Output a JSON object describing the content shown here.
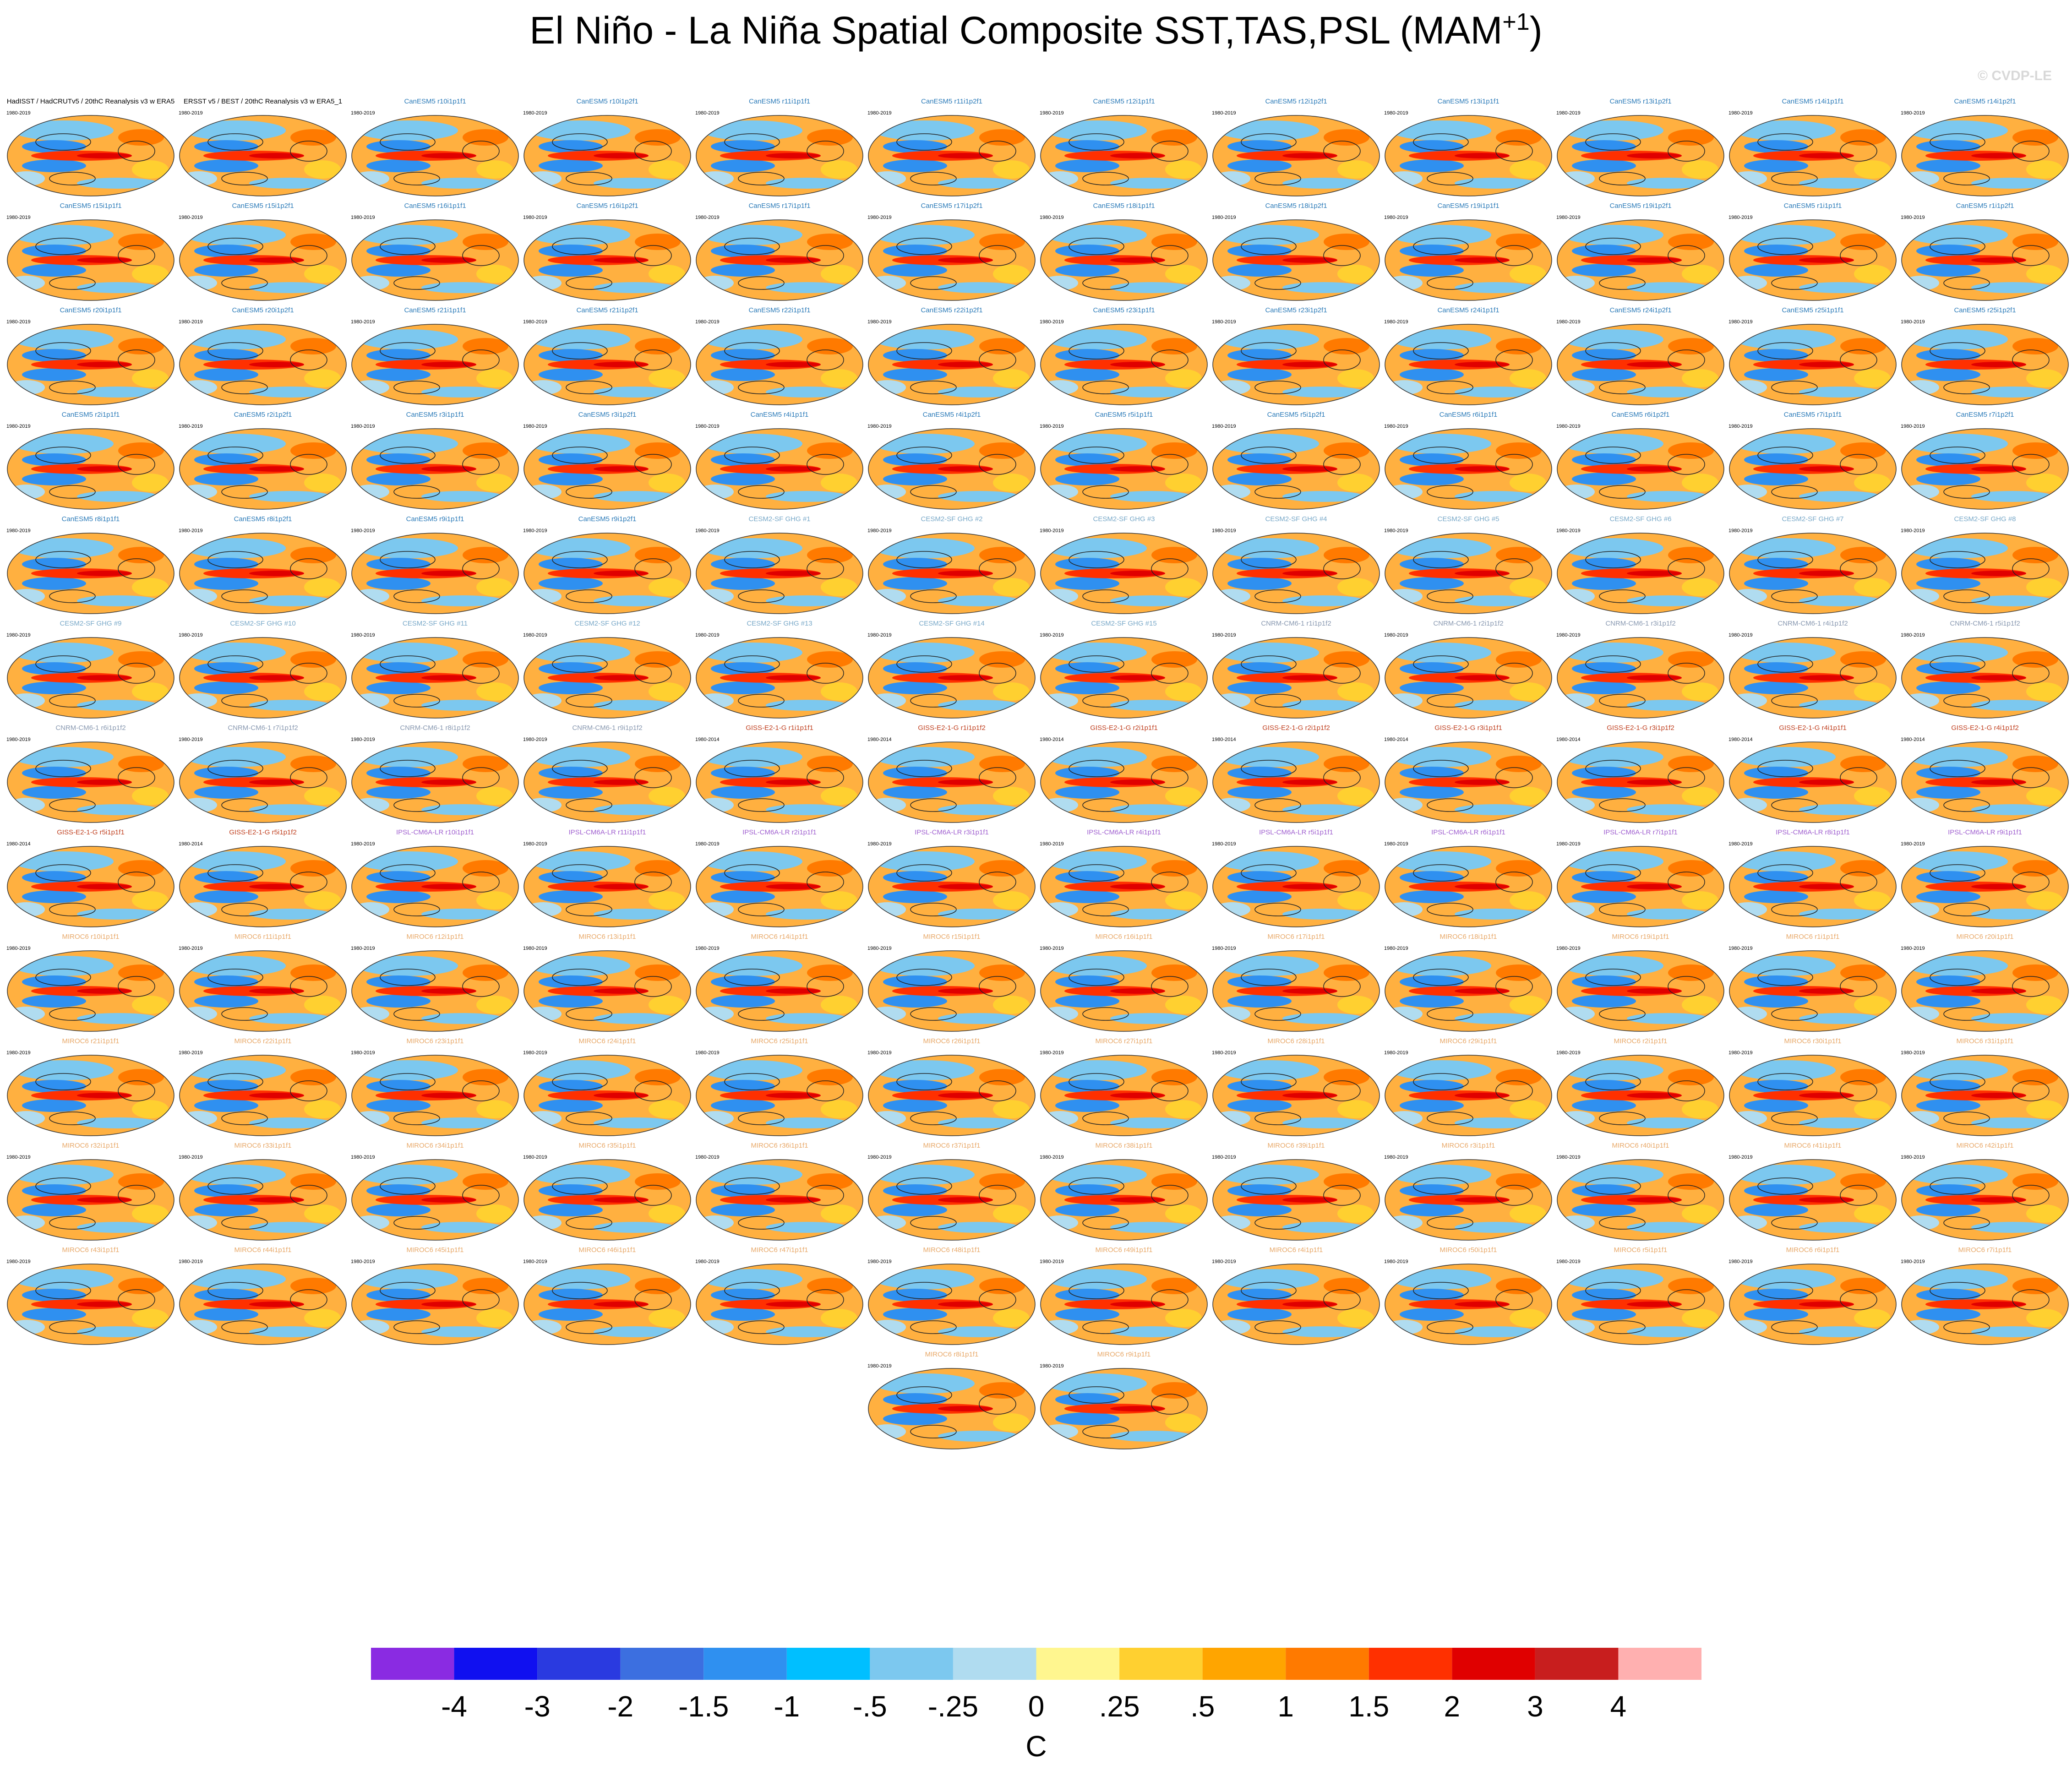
{
  "title": "El Niño - La Niña Spatial Composite SST,TAS,PSL (MAM",
  "title_sup": "+1",
  "title_end": ")",
  "watermark": "© CVDP-LE",
  "panels": [
    {
      "title": "HadISST / HadCRUTv5 / 20thC Reanalysis v3 w ERA5",
      "period": "1980-2019",
      "color": "#000000"
    },
    {
      "title": "ERSST v5 / BEST / 20thC Reanalysis v3 w ERA5_1",
      "period": "1980-2019",
      "color": "#000000"
    },
    {
      "title": "CanESM5 r10i1p1f1",
      "period": "1980-2019",
      "color": "#2a7ab8"
    },
    {
      "title": "CanESM5 r10i1p2f1",
      "period": "1980-2019",
      "color": "#2a7ab8"
    },
    {
      "title": "CanESM5 r11i1p1f1",
      "period": "1980-2019",
      "color": "#2a7ab8"
    },
    {
      "title": "CanESM5 r11i1p2f1",
      "period": "1980-2019",
      "color": "#2a7ab8"
    },
    {
      "title": "CanESM5 r12i1p1f1",
      "period": "1980-2019",
      "color": "#2a7ab8"
    },
    {
      "title": "CanESM5 r12i1p2f1",
      "period": "1980-2019",
      "color": "#2a7ab8"
    },
    {
      "title": "CanESM5 r13i1p1f1",
      "period": "1980-2019",
      "color": "#2a7ab8"
    },
    {
      "title": "CanESM5 r13i1p2f1",
      "period": "1980-2019",
      "color": "#2a7ab8"
    },
    {
      "title": "CanESM5 r14i1p1f1",
      "period": "1980-2019",
      "color": "#2a7ab8"
    },
    {
      "title": "CanESM5 r14i1p2f1",
      "period": "1980-2019",
      "color": "#2a7ab8"
    },
    {
      "title": "CanESM5 r15i1p1f1",
      "period": "1980-2019",
      "color": "#2a7ab8"
    },
    {
      "title": "CanESM5 r15i1p2f1",
      "period": "1980-2019",
      "color": "#2a7ab8"
    },
    {
      "title": "CanESM5 r16i1p1f1",
      "period": "1980-2019",
      "color": "#2a7ab8"
    },
    {
      "title": "CanESM5 r16i1p2f1",
      "period": "1980-2019",
      "color": "#2a7ab8"
    },
    {
      "title": "CanESM5 r17i1p1f1",
      "period": "1980-2019",
      "color": "#2a7ab8"
    },
    {
      "title": "CanESM5 r17i1p2f1",
      "period": "1980-2019",
      "color": "#2a7ab8"
    },
    {
      "title": "CanESM5 r18i1p1f1",
      "period": "1980-2019",
      "color": "#2a7ab8"
    },
    {
      "title": "CanESM5 r18i1p2f1",
      "period": "1980-2019",
      "color": "#2a7ab8"
    },
    {
      "title": "CanESM5 r19i1p1f1",
      "period": "1980-2019",
      "color": "#2a7ab8"
    },
    {
      "title": "CanESM5 r19i1p2f1",
      "period": "1980-2019",
      "color": "#2a7ab8"
    },
    {
      "title": "CanESM5 r1i1p1f1",
      "period": "1980-2019",
      "color": "#2a7ab8"
    },
    {
      "title": "CanESM5 r1i1p2f1",
      "period": "1980-2019",
      "color": "#2a7ab8"
    },
    {
      "title": "CanESM5 r20i1p1f1",
      "period": "1980-2019",
      "color": "#2a7ab8"
    },
    {
      "title": "CanESM5 r20i1p2f1",
      "period": "1980-2019",
      "color": "#2a7ab8"
    },
    {
      "title": "CanESM5 r21i1p1f1",
      "period": "1980-2019",
      "color": "#2a7ab8"
    },
    {
      "title": "CanESM5 r21i1p2f1",
      "period": "1980-2019",
      "color": "#2a7ab8"
    },
    {
      "title": "CanESM5 r22i1p1f1",
      "period": "1980-2019",
      "color": "#2a7ab8"
    },
    {
      "title": "CanESM5 r22i1p2f1",
      "period": "1980-2019",
      "color": "#2a7ab8"
    },
    {
      "title": "CanESM5 r23i1p1f1",
      "period": "1980-2019",
      "color": "#2a7ab8"
    },
    {
      "title": "CanESM5 r23i1p2f1",
      "period": "1980-2019",
      "color": "#2a7ab8"
    },
    {
      "title": "CanESM5 r24i1p1f1",
      "period": "1980-2019",
      "color": "#2a7ab8"
    },
    {
      "title": "CanESM5 r24i1p2f1",
      "period": "1980-2019",
      "color": "#2a7ab8"
    },
    {
      "title": "CanESM5 r25i1p1f1",
      "period": "1980-2019",
      "color": "#2a7ab8"
    },
    {
      "title": "CanESM5 r25i1p2f1",
      "period": "1980-2019",
      "color": "#2a7ab8"
    },
    {
      "title": "CanESM5 r2i1p1f1",
      "period": "1980-2019",
      "color": "#2a7ab8"
    },
    {
      "title": "CanESM5 r2i1p2f1",
      "period": "1980-2019",
      "color": "#2a7ab8"
    },
    {
      "title": "CanESM5 r3i1p1f1",
      "period": "1980-2019",
      "color": "#2a7ab8"
    },
    {
      "title": "CanESM5 r3i1p2f1",
      "period": "1980-2019",
      "color": "#2a7ab8"
    },
    {
      "title": "CanESM5 r4i1p1f1",
      "period": "1980-2019",
      "color": "#2a7ab8"
    },
    {
      "title": "CanESM5 r4i1p2f1",
      "period": "1980-2019",
      "color": "#2a7ab8"
    },
    {
      "title": "CanESM5 r5i1p1f1",
      "period": "1980-2019",
      "color": "#2a7ab8"
    },
    {
      "title": "CanESM5 r5i1p2f1",
      "period": "1980-2019",
      "color": "#2a7ab8"
    },
    {
      "title": "CanESM5 r6i1p1f1",
      "period": "1980-2019",
      "color": "#2a7ab8"
    },
    {
      "title": "CanESM5 r6i1p2f1",
      "period": "1980-2019",
      "color": "#2a7ab8"
    },
    {
      "title": "CanESM5 r7i1p1f1",
      "period": "1980-2019",
      "color": "#2a7ab8"
    },
    {
      "title": "CanESM5 r7i1p2f1",
      "period": "1980-2019",
      "color": "#2a7ab8"
    },
    {
      "title": "CanESM5 r8i1p1f1",
      "period": "1980-2019",
      "color": "#2a7ab8"
    },
    {
      "title": "CanESM5 r8i1p2f1",
      "period": "1980-2019",
      "color": "#2a7ab8"
    },
    {
      "title": "CanESM5 r9i1p1f1",
      "period": "1980-2019",
      "color": "#2a7ab8"
    },
    {
      "title": "CanESM5 r9i1p2f1",
      "period": "1980-2019",
      "color": "#2a7ab8"
    },
    {
      "title": "CESM2-SF GHG #1",
      "period": "1980-2019",
      "color": "#78a8c8"
    },
    {
      "title": "CESM2-SF GHG #2",
      "period": "1980-2019",
      "color": "#78a8c8"
    },
    {
      "title": "CESM2-SF GHG #3",
      "period": "1980-2019",
      "color": "#78a8c8"
    },
    {
      "title": "CESM2-SF GHG #4",
      "period": "1980-2019",
      "color": "#78a8c8"
    },
    {
      "title": "CESM2-SF GHG #5",
      "period": "1980-2019",
      "color": "#78a8c8"
    },
    {
      "title": "CESM2-SF GHG #6",
      "period": "1980-2019",
      "color": "#78a8c8"
    },
    {
      "title": "CESM2-SF GHG #7",
      "period": "1980-2019",
      "color": "#78a8c8"
    },
    {
      "title": "CESM2-SF GHG #8",
      "period": "1980-2019",
      "color": "#78a8c8"
    },
    {
      "title": "CESM2-SF GHG #9",
      "period": "1980-2019",
      "color": "#78a8c8"
    },
    {
      "title": "CESM2-SF GHG #10",
      "period": "1980-2019",
      "color": "#78a8c8"
    },
    {
      "title": "CESM2-SF GHG #11",
      "period": "1980-2019",
      "color": "#78a8c8"
    },
    {
      "title": "CESM2-SF GHG #12",
      "period": "1980-2019",
      "color": "#78a8c8"
    },
    {
      "title": "CESM2-SF GHG #13",
      "period": "1980-2019",
      "color": "#78a8c8"
    },
    {
      "title": "CESM2-SF GHG #14",
      "period": "1980-2019",
      "color": "#78a8c8"
    },
    {
      "title": "CESM2-SF GHG #15",
      "period": "1980-2019",
      "color": "#78a8c8"
    },
    {
      "title": "CNRM-CM6-1 r1i1p1f2",
      "period": "1980-2019",
      "color": "#8898b0"
    },
    {
      "title": "CNRM-CM6-1 r2i1p1f2",
      "period": "1980-2019",
      "color": "#8898b0"
    },
    {
      "title": "CNRM-CM6-1 r3i1p1f2",
      "period": "1980-2019",
      "color": "#8898b0"
    },
    {
      "title": "CNRM-CM6-1 r4i1p1f2",
      "period": "1980-2019",
      "color": "#8898b0"
    },
    {
      "title": "CNRM-CM6-1 r5i1p1f2",
      "period": "1980-2019",
      "color": "#8898b0"
    },
    {
      "title": "CNRM-CM6-1 r6i1p1f2",
      "period": "1980-2019",
      "color": "#8898b0"
    },
    {
      "title": "CNRM-CM6-1 r7i1p1f2",
      "period": "1980-2019",
      "color": "#8898b0"
    },
    {
      "title": "CNRM-CM6-1 r8i1p1f2",
      "period": "1980-2019",
      "color": "#8898b0"
    },
    {
      "title": "CNRM-CM6-1 r9i1p1f2",
      "period": "1980-2019",
      "color": "#8898b0"
    },
    {
      "title": "GISS-E2-1-G r1i1p1f1",
      "period": "1980-2014",
      "color": "#c04020"
    },
    {
      "title": "GISS-E2-1-G r1i1p1f2",
      "period": "1980-2014",
      "color": "#c04020"
    },
    {
      "title": "GISS-E2-1-G r2i1p1f1",
      "period": "1980-2014",
      "color": "#c04020"
    },
    {
      "title": "GISS-E2-1-G r2i1p1f2",
      "period": "1980-2014",
      "color": "#c04020"
    },
    {
      "title": "GISS-E2-1-G r3i1p1f1",
      "period": "1980-2014",
      "color": "#c04020"
    },
    {
      "title": "GISS-E2-1-G r3i1p1f2",
      "period": "1980-2014",
      "color": "#c04020"
    },
    {
      "title": "GISS-E2-1-G r4i1p1f1",
      "period": "1980-2014",
      "color": "#c04020"
    },
    {
      "title": "GISS-E2-1-G r4i1p1f2",
      "period": "1980-2014",
      "color": "#c04020"
    },
    {
      "title": "GISS-E2-1-G r5i1p1f1",
      "period": "1980-2014",
      "color": "#c04020"
    },
    {
      "title": "GISS-E2-1-G r5i1p1f2",
      "period": "1980-2014",
      "color": "#c04020"
    },
    {
      "title": "IPSL-CM6A-LR r10i1p1f1",
      "period": "1980-2019",
      "color": "#a060d0"
    },
    {
      "title": "IPSL-CM6A-LR r11i1p1f1",
      "period": "1980-2019",
      "color": "#a060d0"
    },
    {
      "title": "IPSL-CM6A-LR r2i1p1f1",
      "period": "1980-2019",
      "color": "#a060d0"
    },
    {
      "title": "IPSL-CM6A-LR r3i1p1f1",
      "period": "1980-2019",
      "color": "#a060d0"
    },
    {
      "title": "IPSL-CM6A-LR r4i1p1f1",
      "period": "1980-2019",
      "color": "#a060d0"
    },
    {
      "title": "IPSL-CM6A-LR r5i1p1f1",
      "period": "1980-2019",
      "color": "#a060d0"
    },
    {
      "title": "IPSL-CM6A-LR r6i1p1f1",
      "period": "1980-2019",
      "color": "#a060d0"
    },
    {
      "title": "IPSL-CM6A-LR r7i1p1f1",
      "period": "1980-2019",
      "color": "#a060d0"
    },
    {
      "title": "IPSL-CM6A-LR r8i1p1f1",
      "period": "1980-2019",
      "color": "#a060d0"
    },
    {
      "title": "IPSL-CM6A-LR r9i1p1f1",
      "period": "1980-2019",
      "color": "#a060d0"
    },
    {
      "title": "MIROC6 r10i1p1f1",
      "period": "1980-2019",
      "color": "#e8a868"
    },
    {
      "title": "MIROC6 r11i1p1f1",
      "period": "1980-2019",
      "color": "#e8a868"
    },
    {
      "title": "MIROC6 r12i1p1f1",
      "period": "1980-2019",
      "color": "#e8a868"
    },
    {
      "title": "MIROC6 r13i1p1f1",
      "period": "1980-2019",
      "color": "#e8a868"
    },
    {
      "title": "MIROC6 r14i1p1f1",
      "period": "1980-2019",
      "color": "#e8a868"
    },
    {
      "title": "MIROC6 r15i1p1f1",
      "period": "1980-2019",
      "color": "#e8a868"
    },
    {
      "title": "MIROC6 r16i1p1f1",
      "period": "1980-2019",
      "color": "#e8a868"
    },
    {
      "title": "MIROC6 r17i1p1f1",
      "period": "1980-2019",
      "color": "#e8a868"
    },
    {
      "title": "MIROC6 r18i1p1f1",
      "period": "1980-2019",
      "color": "#e8a868"
    },
    {
      "title": "MIROC6 r19i1p1f1",
      "period": "1980-2019",
      "color": "#e8a868"
    },
    {
      "title": "MIROC6 r1i1p1f1",
      "period": "1980-2019",
      "color": "#e8a868"
    },
    {
      "title": "MIROC6 r20i1p1f1",
      "period": "1980-2019",
      "color": "#e8a868"
    },
    {
      "title": "MIROC6 r21i1p1f1",
      "period": "1980-2019",
      "color": "#e8a868"
    },
    {
      "title": "MIROC6 r22i1p1f1",
      "period": "1980-2019",
      "color": "#e8a868"
    },
    {
      "title": "MIROC6 r23i1p1f1",
      "period": "1980-2019",
      "color": "#e8a868"
    },
    {
      "title": "MIROC6 r24i1p1f1",
      "period": "1980-2019",
      "color": "#e8a868"
    },
    {
      "title": "MIROC6 r25i1p1f1",
      "period": "1980-2019",
      "color": "#e8a868"
    },
    {
      "title": "MIROC6 r26i1p1f1",
      "period": "1980-2019",
      "color": "#e8a868"
    },
    {
      "title": "MIROC6 r27i1p1f1",
      "period": "1980-2019",
      "color": "#e8a868"
    },
    {
      "title": "MIROC6 r28i1p1f1",
      "period": "1980-2019",
      "color": "#e8a868"
    },
    {
      "title": "MIROC6 r29i1p1f1",
      "period": "1980-2019",
      "color": "#e8a868"
    },
    {
      "title": "MIROC6 r2i1p1f1",
      "period": "1980-2019",
      "color": "#e8a868"
    },
    {
      "title": "MIROC6 r30i1p1f1",
      "period": "1980-2019",
      "color": "#e8a868"
    },
    {
      "title": "MIROC6 r31i1p1f1",
      "period": "1980-2019",
      "color": "#e8a868"
    },
    {
      "title": "MIROC6 r32i1p1f1",
      "period": "1980-2019",
      "color": "#e8a868"
    },
    {
      "title": "MIROC6 r33i1p1f1",
      "period": "1980-2019",
      "color": "#e8a868"
    },
    {
      "title": "MIROC6 r34i1p1f1",
      "period": "1980-2019",
      "color": "#e8a868"
    },
    {
      "title": "MIROC6 r35i1p1f1",
      "period": "1980-2019",
      "color": "#e8a868"
    },
    {
      "title": "MIROC6 r36i1p1f1",
      "period": "1980-2019",
      "color": "#e8a868"
    },
    {
      "title": "MIROC6 r37i1p1f1",
      "period": "1980-2019",
      "color": "#e8a868"
    },
    {
      "title": "MIROC6 r38i1p1f1",
      "period": "1980-2019",
      "color": "#e8a868"
    },
    {
      "title": "MIROC6 r39i1p1f1",
      "period": "1980-2019",
      "color": "#e8a868"
    },
    {
      "title": "MIROC6 r3i1p1f1",
      "period": "1980-2019",
      "color": "#e8a868"
    },
    {
      "title": "MIROC6 r40i1p1f1",
      "period": "1980-2019",
      "color": "#e8a868"
    },
    {
      "title": "MIROC6 r41i1p1f1",
      "period": "1980-2019",
      "color": "#e8a868"
    },
    {
      "title": "MIROC6 r42i1p1f1",
      "period": "1980-2019",
      "color": "#e8a868"
    },
    {
      "title": "MIROC6 r43i1p1f1",
      "period": "1980-2019",
      "color": "#e8a868"
    },
    {
      "title": "MIROC6 r44i1p1f1",
      "period": "1980-2019",
      "color": "#e8a868"
    },
    {
      "title": "MIROC6 r45i1p1f1",
      "period": "1980-2019",
      "color": "#e8a868"
    },
    {
      "title": "MIROC6 r46i1p1f1",
      "period": "1980-2019",
      "color": "#e8a868"
    },
    {
      "title": "MIROC6 r47i1p1f1",
      "period": "1980-2019",
      "color": "#e8a868"
    },
    {
      "title": "MIROC6 r48i1p1f1",
      "period": "1980-2019",
      "color": "#e8a868"
    },
    {
      "title": "MIROC6 r49i1p1f1",
      "period": "1980-2019",
      "color": "#e8a868"
    },
    {
      "title": "MIROC6 r4i1p1f1",
      "period": "1980-2019",
      "color": "#e8a868"
    },
    {
      "title": "MIROC6 r50i1p1f1",
      "period": "1980-2019",
      "color": "#e8a868"
    },
    {
      "title": "MIROC6 r5i1p1f1",
      "period": "1980-2019",
      "color": "#e8a868"
    },
    {
      "title": "MIROC6 r6i1p1f1",
      "period": "1980-2019",
      "color": "#e8a868"
    },
    {
      "title": "MIROC6 r7i1p1f1",
      "period": "1980-2019",
      "color": "#e8a868"
    },
    {
      "title": "MIROC6 r8i1p1f1",
      "period": "1980-2019",
      "color": "#e8a868"
    },
    {
      "title": "MIROC6 r9i1p1f1",
      "period": "1980-2019",
      "color": "#e8a868"
    }
  ],
  "colorbar": {
    "colors": [
      "#8a2be2",
      "#1010f0",
      "#2a3ae0",
      "#3c6fe0",
      "#2f90f0",
      "#00bfff",
      "#7cc8ef",
      "#b0dcf0",
      "#fff68f",
      "#ffd030",
      "#ffa500",
      "#ff7a00",
      "#ff3000",
      "#e00000",
      "#c81e1e",
      "#ffb0b0"
    ],
    "ticks": [
      -4,
      -3,
      -2,
      {
        "value": -1.5,
        "label": "-1.5"
      },
      -1,
      {
        "value": -0.5,
        "label": "-.5"
      },
      {
        "value": -0.25,
        "label": "-.25"
      },
      0,
      {
        "value": 0.25,
        "label": ".25"
      },
      {
        "value": 0.5,
        "label": ".5"
      },
      1,
      {
        "value": 1.5,
        "label": "1.5"
      },
      2,
      3,
      4
    ],
    "label": "C"
  }
}
